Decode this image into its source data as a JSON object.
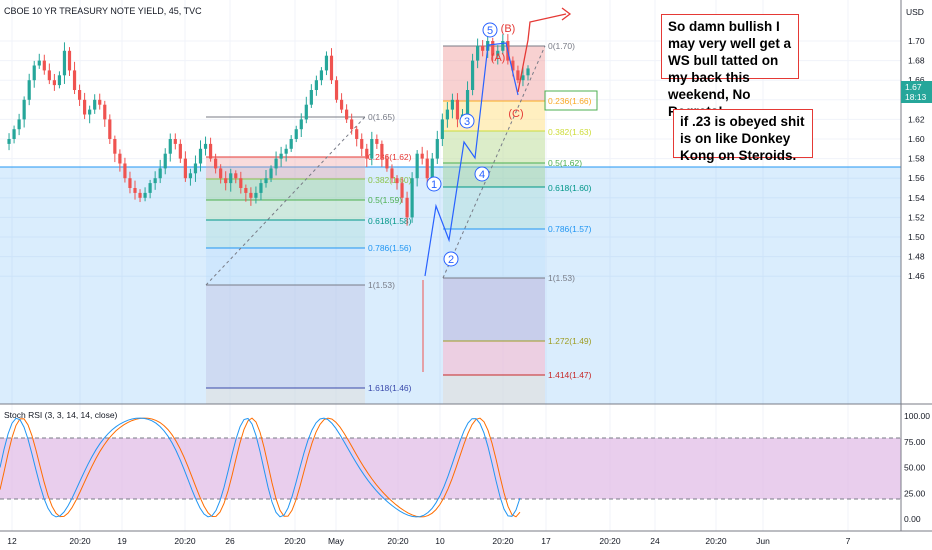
{
  "symbol": "CBOE 10 YR TREASURY NOTE YIELD, 45, TVC",
  "currency": "USD",
  "last_price": "1.67",
  "countdown": "18:13",
  "price_axis": [
    "1.70",
    "1.68",
    "1.66",
    "1.64",
    "1.62",
    "1.60",
    "1.58",
    "1.56",
    "1.54",
    "1.52",
    "1.50",
    "1.48",
    "1.46"
  ],
  "stoch_axis": [
    "100.00",
    "75.00",
    "50.00",
    "25.00",
    "0.00"
  ],
  "time_axis": [
    "12",
    "20:20",
    "19",
    "20:20",
    "26",
    "20:20",
    "May",
    "20:20",
    "10",
    "20:20",
    "17",
    "20:20",
    "24",
    "20:20",
    "Jun",
    "7"
  ],
  "indicator_label": "Stoch RSI (3, 3, 14, 14, close)",
  "fib_left": [
    "0(1.65)",
    "0.236(1.62)",
    "0.382(1.60)",
    "0.5(1.59)",
    "0.618(1.58)",
    "0.786(1.56)",
    "1(1.53)",
    "1.618(1.46)"
  ],
  "fib_right": [
    "0(1.70)",
    "0.236(1.66)",
    "0.382(1.63)",
    "0.5(1.62)",
    "0.618(1.60)",
    "0.786(1.57)",
    "1(1.53)",
    "1.272(1.49)",
    "1.414(1.47)"
  ],
  "wave_labels": [
    "1",
    "2",
    "3",
    "4",
    "5",
    "(A)",
    "(B)",
    "(C)"
  ],
  "notes": [
    "So damn bullish I may very well get a WS bull tatted on my back this weekend, No Regrets!",
    "if .23 is obeyed shit is on like Donkey Kong on Steroids."
  ],
  "colors": {
    "up": "#26a69a",
    "down": "#ef5350",
    "wave": "#2962ff",
    "abc": "#e53935",
    "rsi_k": "#2196f3",
    "rsi_d": "#ff6d00",
    "band": "#e1bee7"
  },
  "chart_data": {
    "type": "candlestick",
    "series": [
      {
        "name": "price",
        "values": [
          1.595,
          1.6,
          1.61,
          1.62,
          1.64,
          1.66,
          1.675,
          1.68,
          1.67,
          1.66,
          1.655,
          1.665,
          1.69,
          1.67,
          1.65,
          1.64,
          1.625,
          1.63,
          1.64,
          1.635,
          1.62,
          1.6,
          1.585,
          1.575,
          1.56,
          1.55,
          1.545,
          1.54,
          1.545,
          1.555,
          1.56,
          1.57,
          1.585,
          1.6,
          1.595,
          1.58,
          1.56,
          1.565,
          1.575,
          1.59,
          1.595,
          1.58,
          1.57,
          1.56,
          1.555,
          1.565,
          1.56,
          1.55,
          1.545,
          1.54,
          1.545,
          1.555,
          1.56,
          1.57,
          1.58,
          1.585,
          1.59,
          1.6,
          1.61,
          1.62,
          1.635,
          1.65,
          1.66,
          1.67,
          1.685,
          1.66,
          1.64,
          1.63,
          1.62,
          1.61,
          1.6,
          1.59,
          1.58,
          1.6,
          1.595,
          1.58,
          1.57,
          1.56,
          1.555,
          1.54,
          1.52,
          1.56,
          1.585,
          1.58,
          1.56,
          1.58,
          1.6,
          1.62,
          1.63,
          1.64,
          1.62,
          1.625,
          1.65,
          1.68,
          1.695,
          1.69,
          1.7,
          1.685,
          1.69,
          1.7,
          1.68,
          1.67,
          1.66,
          1.665,
          1.672
        ]
      }
    ],
    "ylim": [
      1.45,
      1.715
    ]
  }
}
